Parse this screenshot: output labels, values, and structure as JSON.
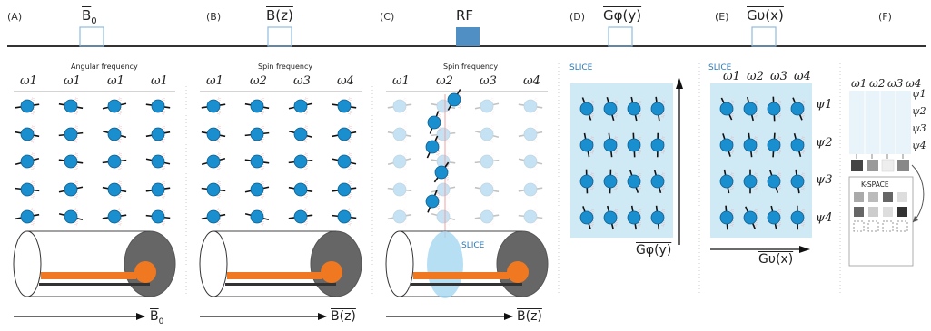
{
  "panels": [
    {
      "id": "A",
      "letter": "(A)",
      "seq_label": "B",
      "seq_sub": "0",
      "subtitle": "Angular frequency",
      "omegas": [
        "ω1",
        "ω1",
        "ω1",
        "ω1"
      ],
      "axis": "B",
      "axis_sub": "0"
    },
    {
      "id": "B",
      "letter": "(B)",
      "seq_label": "B(z)",
      "subtitle": "Spin frequency",
      "omegas": [
        "ω1",
        "ω2",
        "ω3",
        "ω4"
      ],
      "axis": "B(z)"
    },
    {
      "id": "C",
      "letter": "(C)",
      "seq_label": "RF",
      "subtitle": "Spin frequency",
      "omegas": [
        "ω1",
        "ω2",
        "ω3",
        "ω4"
      ],
      "axis": "B(z)",
      "slice": "SLICE"
    },
    {
      "id": "D",
      "letter": "(D)",
      "seq_label": "Gφ(y)",
      "slice": "SLICE",
      "axis": "Gφ(y)"
    },
    {
      "id": "E",
      "letter": "(E)",
      "seq_label": "Gυ(x)",
      "slice": "SLICE",
      "omegas": [
        "ω1",
        "ω2",
        "ω3",
        "ω4"
      ],
      "psis": [
        "ψ1",
        "ψ2",
        "ψ3",
        "ψ4"
      ],
      "axis": "Gυ(x)"
    },
    {
      "id": "F",
      "letter": "(F)",
      "omegas": [
        "ω1",
        "ω2",
        "ω3",
        "ω4"
      ],
      "psis": [
        "ψ1",
        "ψ2",
        "ψ3",
        "ψ4"
      ],
      "kspace": "K-SPACE"
    }
  ],
  "colors": {
    "spin": "#1a8fd0",
    "magnet_core": "#f07820",
    "rf_pulse": "#4f8fc4",
    "slice": "#bfe3f3",
    "gate": "#8fbbe0"
  }
}
